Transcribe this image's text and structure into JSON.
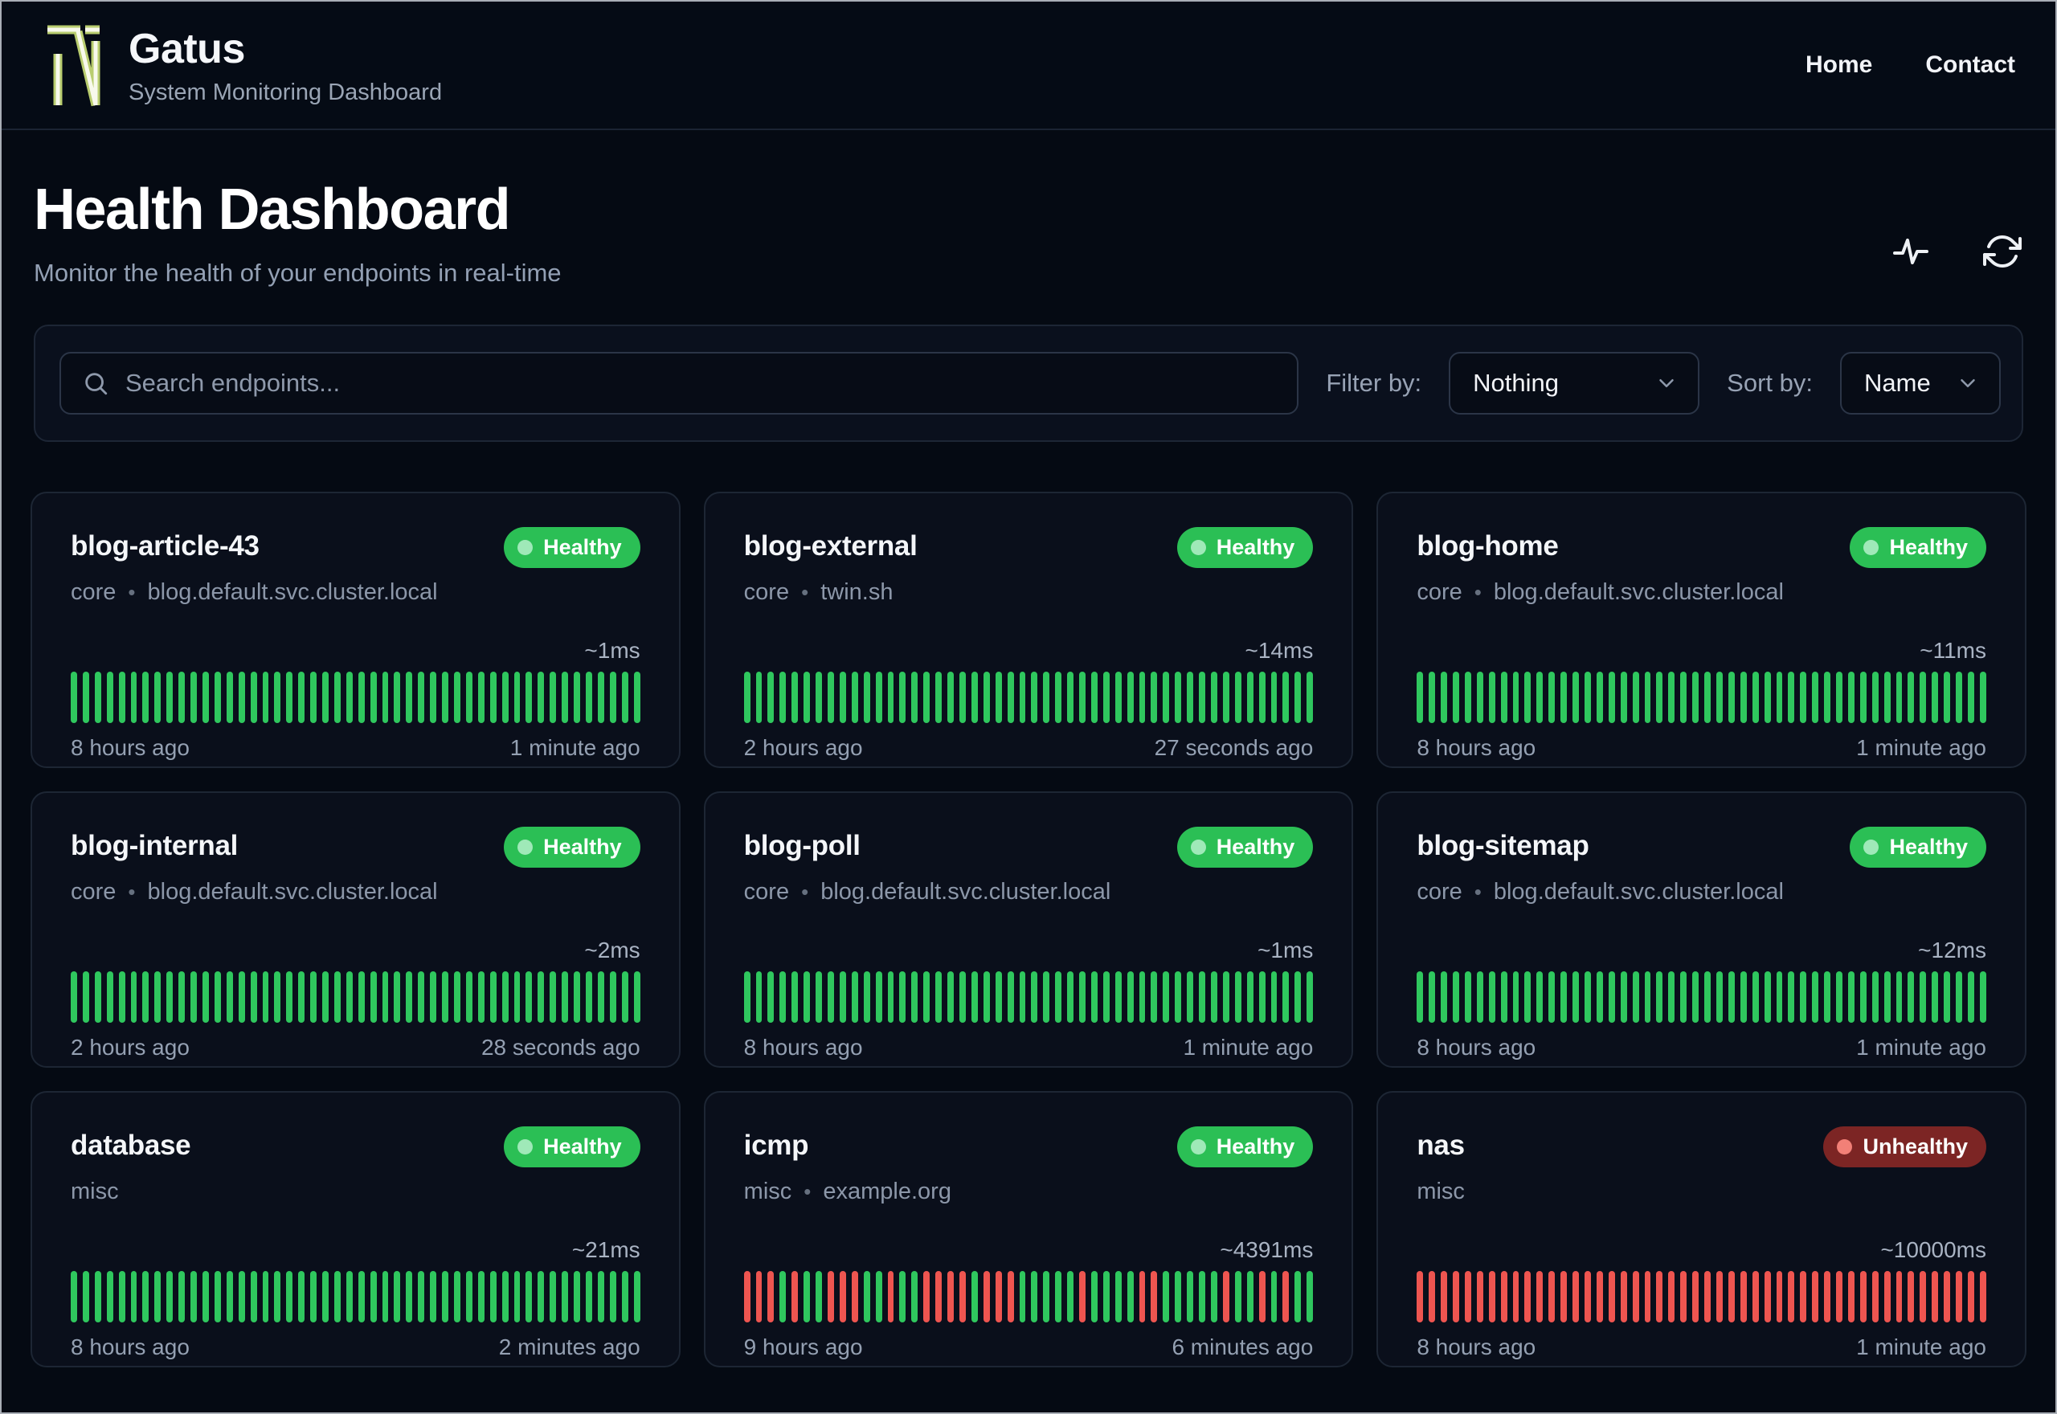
{
  "brand": {
    "name": "Gatus",
    "subtitle": "System Monitoring Dashboard"
  },
  "nav": [
    {
      "label": "Home"
    },
    {
      "label": "Contact"
    }
  ],
  "page": {
    "title": "Health Dashboard",
    "subtitle": "Monitor the health of your endpoints in real-time"
  },
  "toolbar": {
    "search_placeholder": "Search endpoints...",
    "filter_label": "Filter by:",
    "filter_value": "Nothing",
    "sort_label": "Sort by:",
    "sort_value": "Name"
  },
  "icons": {
    "logo": "tn-monogram-logo",
    "header_actions": [
      "activity-icon",
      "refresh-icon"
    ],
    "search": "search-icon",
    "select_chevron": "chevron-down-icon"
  },
  "colors": {
    "page_bg": "#050a13",
    "card_bg": "#0a0f1b",
    "healthy_bar": "#2fc75e",
    "unhealthy_bar": "#ee5550",
    "healthy_badge_bg": "#2bbf55",
    "unhealthy_badge_bg": "#7c2524",
    "logo_accent": "#b9cd6f"
  },
  "endpoints": [
    {
      "name": "blog-article-43",
      "group": "core",
      "host": "blog.default.svc.cluster.local",
      "status": "Healthy",
      "latency": "~1ms",
      "from": "8 hours ago",
      "to": "1 minute ago",
      "history": "GGGGGGGGGGGGGGGGGGGGGGGGGGGGGGGGGGGGGGGGGGGGGGGG"
    },
    {
      "name": "blog-external",
      "group": "core",
      "host": "twin.sh",
      "status": "Healthy",
      "latency": "~14ms",
      "from": "2 hours ago",
      "to": "27 seconds ago",
      "history": "GGGGGGGGGGGGGGGGGGGGGGGGGGGGGGGGGGGGGGGGGGGGGGGG"
    },
    {
      "name": "blog-home",
      "group": "core",
      "host": "blog.default.svc.cluster.local",
      "status": "Healthy",
      "latency": "~11ms",
      "from": "8 hours ago",
      "to": "1 minute ago",
      "history": "GGGGGGGGGGGGGGGGGGGGGGGGGGGGGGGGGGGGGGGGGGGGGGGG"
    },
    {
      "name": "blog-internal",
      "group": "core",
      "host": "blog.default.svc.cluster.local",
      "status": "Healthy",
      "latency": "~2ms",
      "from": "2 hours ago",
      "to": "28 seconds ago",
      "history": "GGGGGGGGGGGGGGGGGGGGGGGGGGGGGGGGGGGGGGGGGGGGGGGG"
    },
    {
      "name": "blog-poll",
      "group": "core",
      "host": "blog.default.svc.cluster.local",
      "status": "Healthy",
      "latency": "~1ms",
      "from": "8 hours ago",
      "to": "1 minute ago",
      "history": "GGGGGGGGGGGGGGGGGGGGGGGGGGGGGGGGGGGGGGGGGGGGGGGG"
    },
    {
      "name": "blog-sitemap",
      "group": "core",
      "host": "blog.default.svc.cluster.local",
      "status": "Healthy",
      "latency": "~12ms",
      "from": "8 hours ago",
      "to": "1 minute ago",
      "history": "GGGGGGGGGGGGGGGGGGGGGGGGGGGGGGGGGGGGGGGGGGGGGGGG"
    },
    {
      "name": "database",
      "group": "misc",
      "host": null,
      "status": "Healthy",
      "latency": "~21ms",
      "from": "8 hours ago",
      "to": "2 minutes ago",
      "history": "GGGGGGGGGGGGGGGGGGGGGGGGGGGGGGGGGGGGGGGGGGGGGGGG"
    },
    {
      "name": "icmp",
      "group": "misc",
      "host": "example.org",
      "status": "Healthy",
      "latency": "~4391ms",
      "from": "9 hours ago",
      "to": "6 minutes ago",
      "history": "RRRGRGGRRRGGRGGRRRRGRRRGGGGGRGGGGRRGGGGGRGGRGRGG"
    },
    {
      "name": "nas",
      "group": "misc",
      "host": null,
      "status": "Unhealthy",
      "latency": "~10000ms",
      "from": "8 hours ago",
      "to": "1 minute ago",
      "history": "RRRRRRRRRRRRRRRRRRRRRRRRRRRRRRRRRRRRRRRRRRRRRRRR"
    }
  ]
}
